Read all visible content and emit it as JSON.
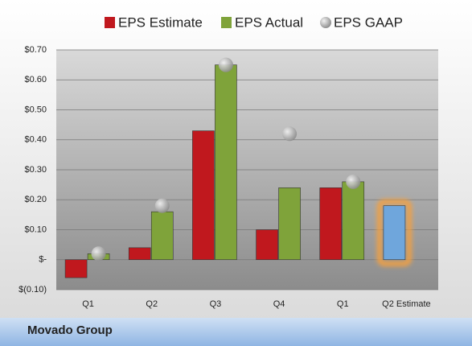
{
  "chart_data": {
    "type": "bar",
    "footer": "Movado Group",
    "categories": [
      "Q1",
      "Q2",
      "Q3",
      "Q4",
      "Q1",
      "Q2 Estimate"
    ],
    "series": [
      {
        "name": "EPS Estimate",
        "color": "#c0181e",
        "values": [
          -0.06,
          0.04,
          0.43,
          0.1,
          0.24,
          0.18
        ],
        "highlight_color": "#6fa6dc",
        "highlight_glow": "#f4a040"
      },
      {
        "name": "EPS Actual",
        "color": "#7fa33a",
        "values": [
          0.02,
          0.16,
          0.65,
          0.24,
          0.26,
          null
        ]
      },
      {
        "name": "EPS GAAP",
        "color": "#b0b0b0",
        "values": [
          0.02,
          0.18,
          0.65,
          0.42,
          0.26,
          null
        ],
        "marker": "circle"
      }
    ],
    "ylim": [
      -0.1,
      0.7
    ],
    "yticks": [
      {
        "value": -0.1,
        "label": "$(0.10)"
      },
      {
        "value": 0,
        "label": "$-"
      },
      {
        "value": 0.1,
        "label": "$0.10"
      },
      {
        "value": 0.2,
        "label": "$0.20"
      },
      {
        "value": 0.3,
        "label": "$0.30"
      },
      {
        "value": 0.4,
        "label": "$0.40"
      },
      {
        "value": 0.5,
        "label": "$0.50"
      },
      {
        "value": 0.6,
        "label": "$0.60"
      },
      {
        "value": 0.7,
        "label": "$0.70"
      }
    ],
    "grid": true,
    "legend": "top"
  }
}
